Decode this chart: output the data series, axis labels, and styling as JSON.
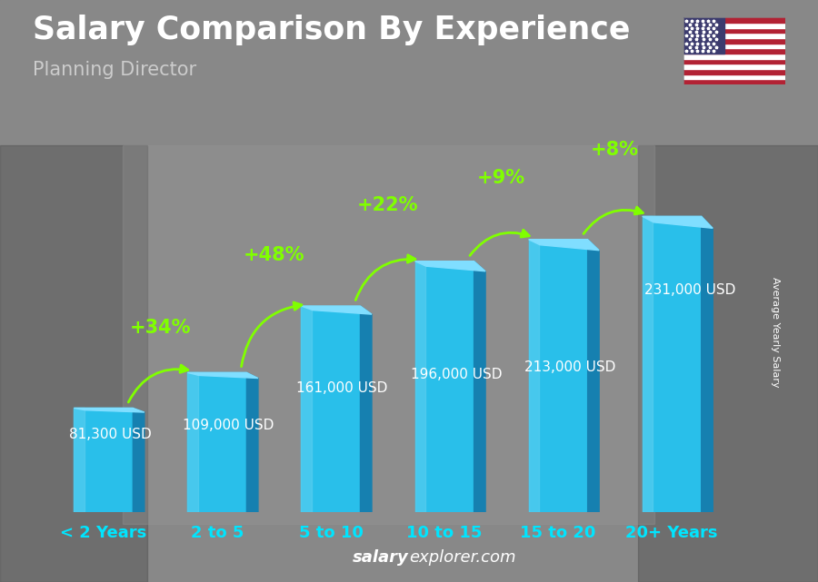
{
  "categories": [
    "< 2 Years",
    "2 to 5",
    "5 to 10",
    "10 to 15",
    "15 to 20",
    "20+ Years"
  ],
  "values": [
    81300,
    109000,
    161000,
    196000,
    213000,
    231000
  ],
  "salary_labels": [
    "81,300 USD",
    "109,000 USD",
    "161,000 USD",
    "196,000 USD",
    "213,000 USD",
    "231,000 USD"
  ],
  "pct_labels": [
    "+34%",
    "+48%",
    "+22%",
    "+9%",
    "+8%"
  ],
  "face_color": "#29BFEA",
  "side_color": "#1680B0",
  "top_color": "#80DEFF",
  "shine_color": "#60D0F0",
  "title": "Salary Comparison By Experience",
  "subtitle": "Planning Director",
  "ylabel": "Average Yearly Salary",
  "watermark_bold": "salary",
  "watermark_normal": "explorer.com",
  "bg_color": "#7a7a7a",
  "green_color": "#80FF00",
  "white": "#ffffff",
  "cyan_label": "#00E5FF",
  "title_fontsize": 25,
  "subtitle_fontsize": 15,
  "cat_fontsize": 13,
  "pct_fontsize": 15,
  "salary_fontsize": 11,
  "ylabel_fontsize": 8,
  "watermark_fontsize": 13
}
